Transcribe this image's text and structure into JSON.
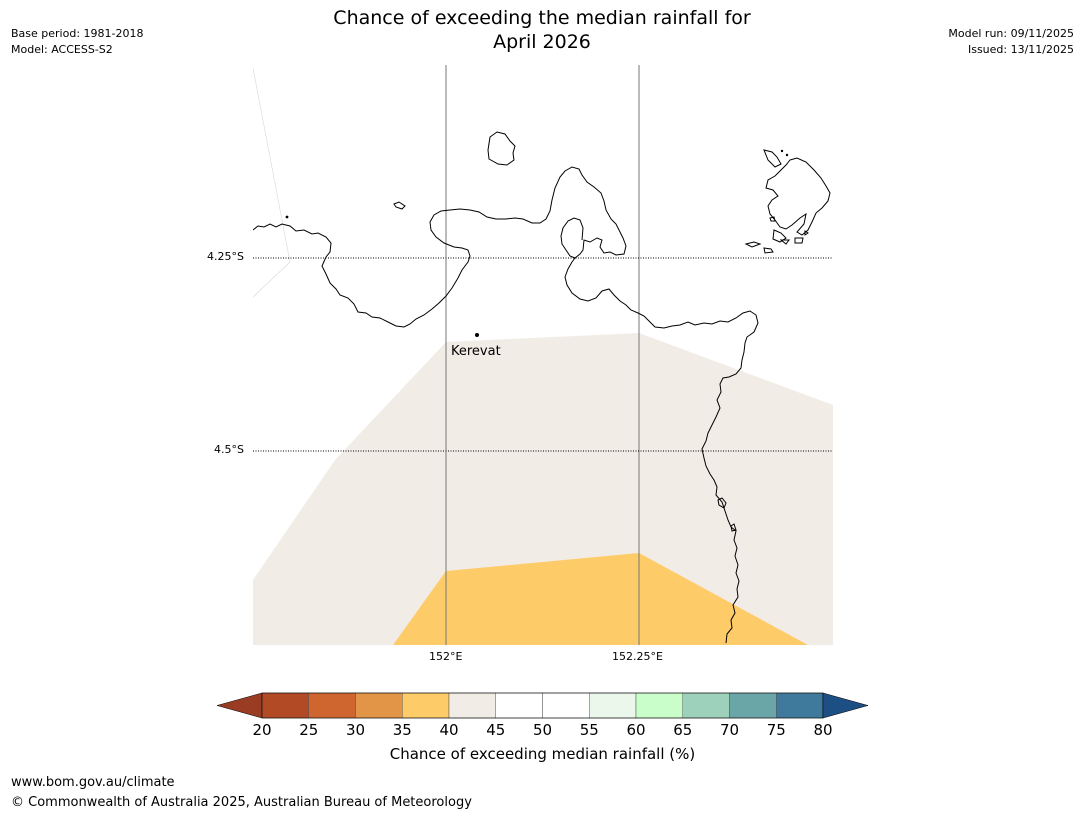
{
  "header": {
    "title_line1": "Chance of exceeding the median rainfall for",
    "title_line2": "April 2026",
    "base_period": "Base period: 1981-2018",
    "model": "Model: ACCESS-S2",
    "model_run": "Model run: 09/11/2025",
    "issued": "Issued: 13/11/2025"
  },
  "map": {
    "lat_labels": [
      "4.25°S",
      "4.5°S"
    ],
    "lon_labels": [
      "152°E",
      "152.25°E"
    ],
    "place": "Kerevat",
    "colors": {
      "band_40_45": "#f2ece6",
      "band_35_40": "#fdcb68",
      "coast": "#000000",
      "gridline": "#000000"
    }
  },
  "colorbar": {
    "label": "Chance of exceeding median rainfall (%)",
    "ticks": [
      "20",
      "25",
      "30",
      "35",
      "40",
      "45",
      "50",
      "55",
      "60",
      "65",
      "70",
      "75",
      "80"
    ],
    "colors": [
      "#b34a26",
      "#cf652f",
      "#e39547",
      "#fdcb68",
      "#f2ece6",
      "#ffffff",
      "#ffffff",
      "#ebf7eb",
      "#c9fdc9",
      "#9dd1bb",
      "#6aa6a8",
      "#3f799b"
    ],
    "under_color": "#9a3b23",
    "over_color": "#1d4f85"
  },
  "footer": {
    "url": "www.bom.gov.au/climate",
    "copyright": "© Commonwealth of Australia 2025, Australian Bureau of Meteorology"
  }
}
